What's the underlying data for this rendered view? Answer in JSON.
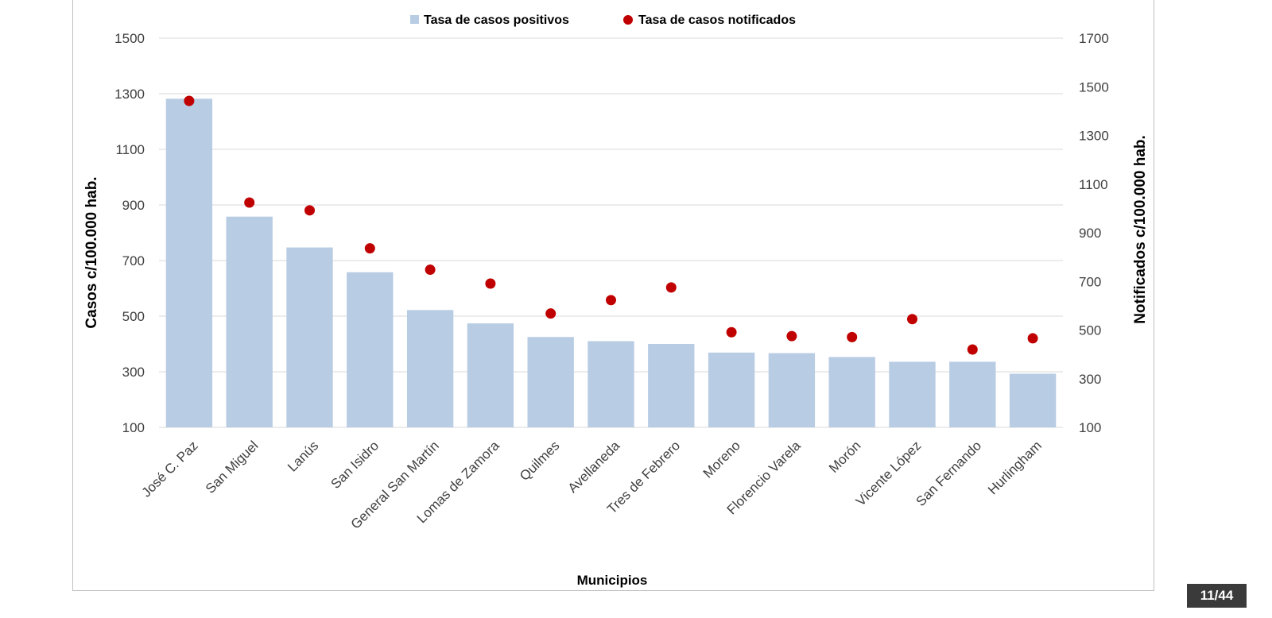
{
  "page_indicator": "11/44",
  "chart_data": {
    "type": "bar",
    "title": "",
    "xlabel": "Municipios",
    "ylabel": "Casos c/100.000 hab.",
    "y2label": "Notificados c/100.000 hab.",
    "ylim": [
      100,
      1500
    ],
    "y2lim": [
      100,
      1700
    ],
    "yticks": [
      100,
      300,
      500,
      700,
      900,
      1100,
      1300,
      1500
    ],
    "y2ticks": [
      100,
      300,
      500,
      700,
      900,
      1100,
      1300,
      1500,
      1700
    ],
    "grid": true,
    "legend_position": "top",
    "categories": [
      "José C. Paz",
      "San Miguel",
      "Lanús",
      "San Isidro",
      "General San Martín",
      "Lomas de Zamora",
      "Quilmes",
      "Avellaneda",
      "Tres de Febrero",
      "Moreno",
      "Florencio Varela",
      "Morón",
      "Vicente López",
      "San Fernando",
      "Hurlingham"
    ],
    "series": [
      {
        "name": "Tasa de casos positivos",
        "kind": "bar",
        "axis": "left",
        "color": "#b8cce4",
        "values": [
          1282,
          858,
          747,
          658,
          522,
          474,
          425,
          410,
          400,
          369,
          367,
          353,
          336,
          336,
          293
        ]
      },
      {
        "name": "Tasa de casos notificados",
        "kind": "marker",
        "axis": "right",
        "color": "#c00000",
        "values": [
          1442,
          1024,
          992,
          836,
          748,
          691,
          568,
          623,
          675,
          491,
          475,
          471,
          545,
          420,
          466
        ]
      }
    ]
  }
}
